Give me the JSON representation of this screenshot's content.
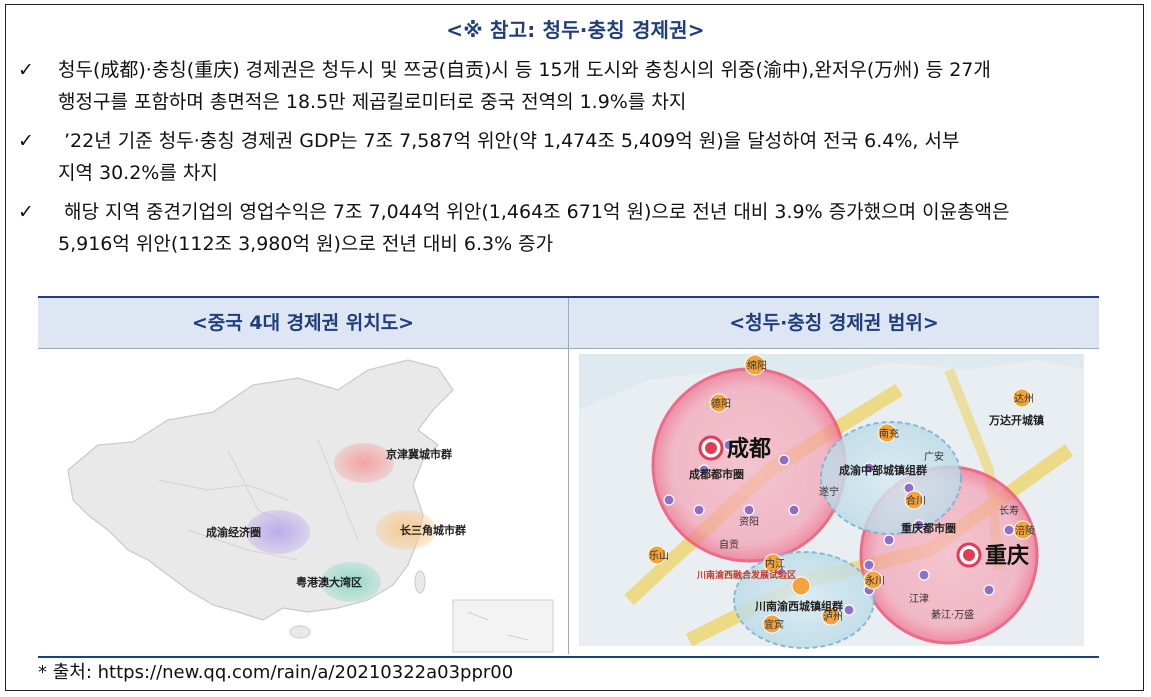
{
  "title": "<※ 참고: 청두·충칭 경제권>",
  "bullets": [
    {
      "check": "✓",
      "line1": "청두(成都)·충칭(重庆) 경제권은 청두시 및 쯔궁(自贡)시 등 15개 도시와 충칭시의 위중(渝中),완저우(万州) 등 27개",
      "line2": "행정구를 포함하며 총면적은 18.5만 제곱킬로미터로 중국 전역의 1.9%를 차지"
    },
    {
      "check": "✓",
      "line1": "’22년 기준 청두·충칭 경제권 GDP는 7조 7,587억 위안(약 1,474조 5,409억 원)을 달성하여 전국 6.4%, 서부",
      "line2": "지역 30.2%를 차지"
    },
    {
      "check": "✓",
      "line1": "해당 지역 중견기업의 영업수익은 7조 7,044억 위안(1,464조 671억 원)으로 전년 대비 3.9% 증가했으며 이윤총액은",
      "line2": "5,916억 위안(112조 3,980억 원)으로 전년 대비 6.3% 증가"
    }
  ],
  "table": {
    "headers": [
      "<중국 4대 경제권 위치도>",
      "<청두·충칭 경제권 범위>"
    ],
    "map_left": {
      "regions": [
        "京津冀城市群",
        "成渝经济圈",
        "长三角城市群",
        "粤港澳大湾区"
      ]
    },
    "map_right": {
      "main_cities": [
        "成都",
        "重庆"
      ],
      "zones": [
        "成都都市圈",
        "重庆都市圈",
        "成渝中部城镇组群",
        "川南渝西城镇组群",
        "川南渝西融合发展试验区",
        "万达开城镇"
      ],
      "cities": [
        "绵阳",
        "德阳",
        "达州",
        "南充",
        "广安",
        "合川",
        "遂宁",
        "资阳",
        "内江",
        "乐山",
        "自贡",
        "永川",
        "宜宾",
        "泸州",
        "江津",
        "涪陵",
        "长寿",
        "綦江·万盛"
      ]
    }
  },
  "source": "* 출처: https://new.qq.com/rain/a/20210322a03ppr00"
}
